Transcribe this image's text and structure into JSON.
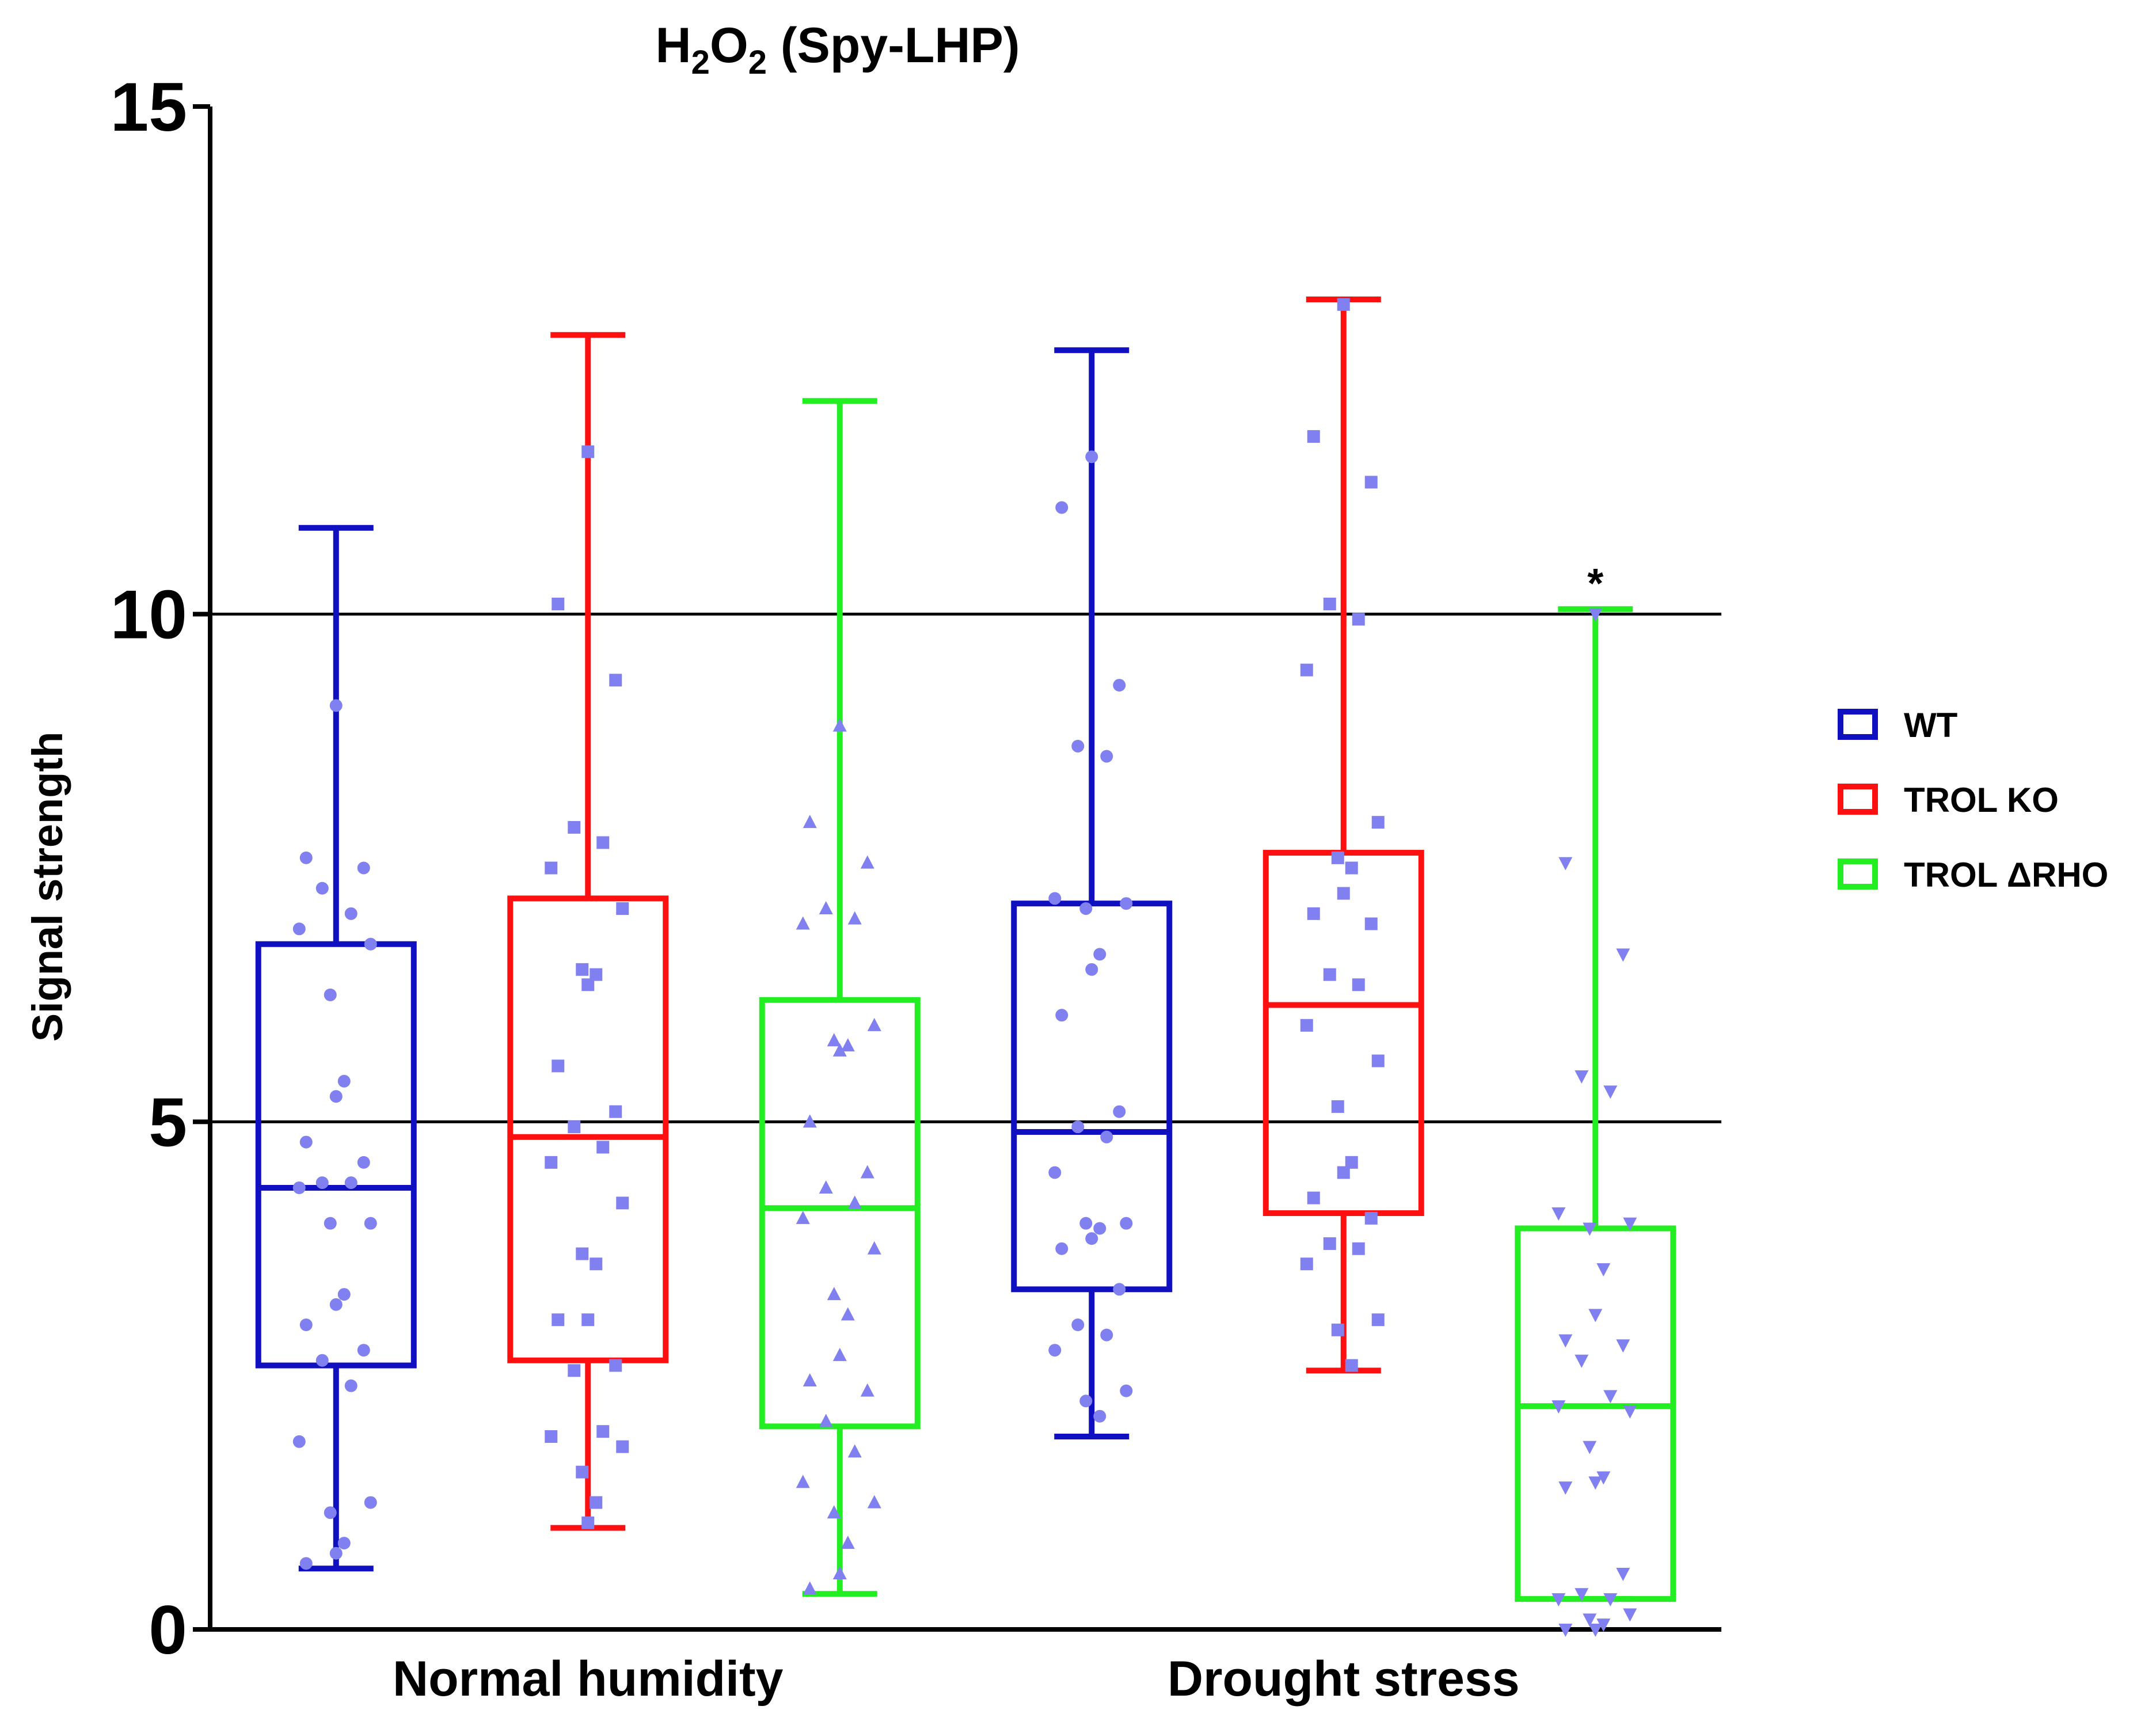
{
  "chart_data": {
    "type": "box",
    "title": "H₂O₂ (Spy-LHP)",
    "title_parts": {
      "a": "H",
      "sub1": "2",
      "b": "O",
      "sub2": "2",
      "c": " (Spy-LHP)"
    },
    "ylabel": "Signal strength",
    "xlabel": "",
    "ylim": [
      0,
      15
    ],
    "yticks": [
      "0",
      "5",
      "10",
      "15"
    ],
    "gridlines_y": [
      5,
      10
    ],
    "categories": [
      "Normal humidity",
      "Drought stress"
    ],
    "legend": {
      "position": "right",
      "entries": [
        {
          "name": "WT",
          "color": "#1010c0"
        },
        {
          "name": "TROL KO",
          "color": "#ff1010"
        },
        {
          "name": "TROL ΔRHO",
          "color": "#22ee22"
        }
      ]
    },
    "point_color": "#8080f0",
    "series": [
      {
        "name": "WT",
        "category": "Normal humidity",
        "color": "#1010c0",
        "marker": "circle",
        "min": 0.6,
        "q1": 2.6,
        "median": 4.35,
        "q3": 6.75,
        "max": 10.85,
        "points": [
          9.1,
          7.6,
          7.5,
          7.3,
          7.05,
          6.9,
          6.75,
          6.25,
          5.4,
          5.25,
          4.8,
          4.6,
          4.4,
          4.4,
          4.35,
          4.0,
          4.0,
          3.3,
          3.2,
          3.0,
          2.75,
          2.65,
          2.4,
          1.85,
          1.25,
          1.15,
          0.85,
          0.75,
          0.65
        ]
      },
      {
        "name": "TROL KO",
        "category": "Normal humidity",
        "color": "#ff1010",
        "marker": "square",
        "min": 1.0,
        "q1": 2.65,
        "median": 4.85,
        "q3": 7.2,
        "max": 12.75,
        "points": [
          11.6,
          10.1,
          9.35,
          7.9,
          7.75,
          7.5,
          7.1,
          6.5,
          6.45,
          6.35,
          5.55,
          5.1,
          4.95,
          4.75,
          4.6,
          4.2,
          3.7,
          3.6,
          3.05,
          3.05,
          2.6,
          2.55,
          1.95,
          1.9,
          1.8,
          1.55,
          1.25,
          1.05
        ]
      },
      {
        "name": "TROL ΔRHO",
        "category": "Normal humidity",
        "color": "#22ee22",
        "marker": "triangle-up",
        "min": 0.35,
        "q1": 2.0,
        "median": 4.15,
        "q3": 6.2,
        "max": 12.1,
        "points": [
          8.9,
          7.95,
          7.55,
          7.1,
          7.0,
          6.95,
          5.95,
          5.8,
          5.75,
          5.7,
          5.0,
          4.5,
          4.35,
          4.2,
          4.05,
          3.75,
          3.3,
          3.1,
          2.7,
          2.45,
          2.35,
          2.05,
          1.75,
          1.45,
          1.25,
          1.15,
          0.85,
          0.55,
          0.4
        ]
      },
      {
        "name": "WT",
        "category": "Drought stress",
        "color": "#1010c0",
        "marker": "circle",
        "min": 1.9,
        "q1": 3.35,
        "median": 4.9,
        "q3": 7.15,
        "max": 12.6,
        "points": [
          11.55,
          11.05,
          9.3,
          8.7,
          8.6,
          7.2,
          7.15,
          7.1,
          6.65,
          6.5,
          6.05,
          5.1,
          4.95,
          4.85,
          4.5,
          4.0,
          4.0,
          3.95,
          3.85,
          3.75,
          3.35,
          3.0,
          2.9,
          2.75,
          2.35,
          2.25,
          2.1
        ]
      },
      {
        "name": "TROL KO",
        "category": "Drought stress",
        "color": "#ff1010",
        "marker": "square",
        "min": 2.55,
        "q1": 4.1,
        "median": 6.15,
        "q3": 7.65,
        "max": 13.1,
        "points": [
          13.05,
          11.75,
          11.3,
          10.1,
          9.95,
          9.45,
          7.95,
          7.6,
          7.5,
          7.25,
          7.05,
          6.95,
          6.45,
          6.35,
          5.95,
          5.6,
          5.15,
          4.6,
          4.5,
          4.25,
          4.05,
          3.8,
          3.75,
          3.6,
          3.05,
          2.95,
          2.6
        ]
      },
      {
        "name": "TROL ΔRHO",
        "category": "Drought stress",
        "color": "#22ee22",
        "marker": "triangle-down",
        "min": 0.3,
        "q1": 0.3,
        "median": 2.2,
        "q3": 3.95,
        "max": 10.05,
        "annotation": "*",
        "points": [
          10.0,
          7.55,
          6.65,
          5.45,
          5.3,
          4.1,
          4.0,
          3.95,
          3.55,
          3.1,
          2.85,
          2.8,
          2.65,
          2.3,
          2.2,
          2.15,
          1.8,
          1.5,
          1.45,
          1.4,
          0.55,
          0.35,
          0.3,
          0.3,
          0.15,
          0.1,
          0.05,
          0.0,
          0.0
        ]
      }
    ]
  }
}
